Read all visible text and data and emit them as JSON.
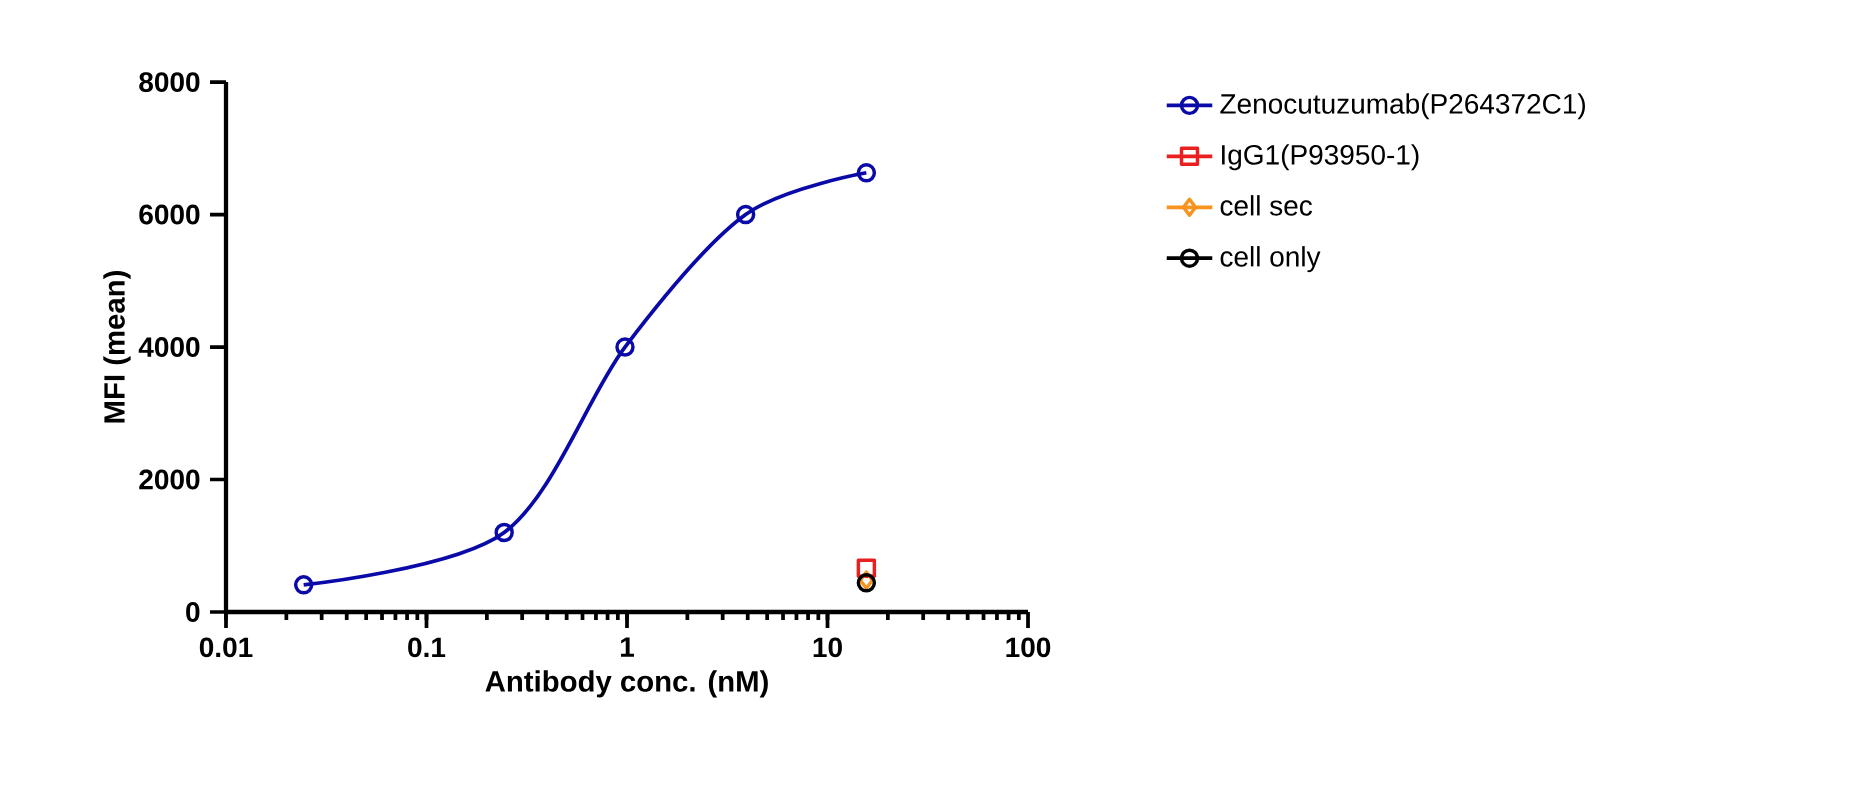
{
  "chart_data": {
    "type": "line",
    "xlabel": "Antibody conc. (nM)",
    "ylabel": "MFI (mean)",
    "log": "x",
    "xlim": [
      0.01,
      100
    ],
    "ylim": [
      0,
      8000
    ],
    "xticks": [
      0.01,
      0.1,
      1,
      10,
      100
    ],
    "yticks": [
      0,
      2000,
      4000,
      6000,
      8000
    ],
    "legend": "right",
    "line_style": "solid",
    "series": [
      {
        "name": "Zenocutuzumab(P264372C1)",
        "color": "#0a0aa8",
        "marker": "circle",
        "x": [
          0.0244,
          0.244,
          0.977,
          3.906,
          15.625
        ],
        "values": [
          410,
          1200,
          4000,
          6000,
          6630
        ]
      },
      {
        "name": "IgG1(P93950-1)",
        "color": "#e8201f",
        "marker": "square",
        "x": [
          15.625
        ],
        "values": [
          660
        ]
      },
      {
        "name": "cell sec",
        "color": "#f7931e",
        "marker": "diamond",
        "x": [
          15.625
        ],
        "values": [
          480
        ]
      },
      {
        "name": "cell only",
        "color": "#000000",
        "marker": "circle",
        "x": [
          15.625
        ],
        "values": [
          440
        ]
      }
    ]
  }
}
